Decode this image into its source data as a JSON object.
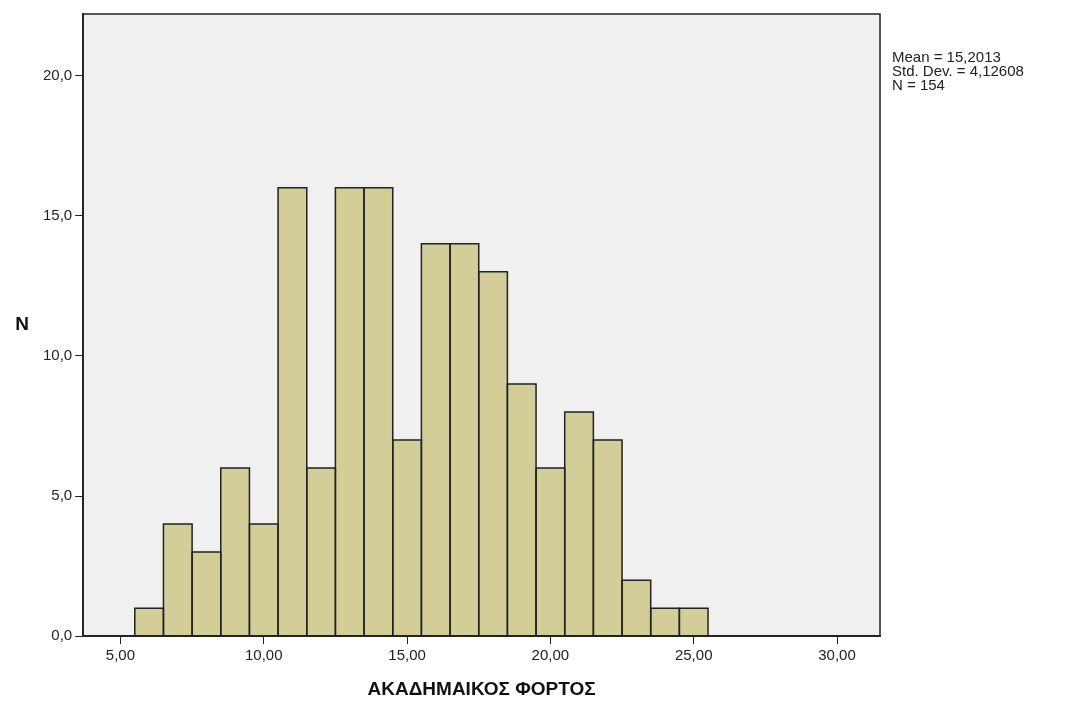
{
  "chart_data": {
    "type": "histogram",
    "xlabel": "ΑΚΑΔΗΜΑΙΚΟΣ ΦΟΡΤΟΣ",
    "ylabel": "N",
    "bins": [
      5.5,
      6.5,
      7.5,
      8.5,
      9.5,
      10.5,
      11.5,
      12.5,
      13.5,
      14.5,
      15.5,
      16.5,
      17.5,
      18.5,
      19.5,
      20.5,
      21.5,
      22.5,
      23.5,
      24.5,
      25.5
    ],
    "values": [
      1,
      4,
      3,
      6,
      4,
      16,
      6,
      16,
      16,
      7,
      14,
      14,
      13,
      9,
      6,
      8,
      7,
      2,
      1,
      1
    ],
    "color": "#d3ce98",
    "xlim": [
      3.7,
      31.5
    ],
    "xticks": [
      {
        "value": 5,
        "label": "5,00"
      },
      {
        "value": 10,
        "label": "10,00"
      },
      {
        "value": 15,
        "label": "15,00"
      },
      {
        "value": 20,
        "label": "20,00"
      },
      {
        "value": 25,
        "label": "25,00"
      },
      {
        "value": 30,
        "label": "30,00"
      }
    ],
    "ylim": [
      0,
      22.2
    ],
    "yticks": [
      {
        "value": 0,
        "label": "0,0"
      },
      {
        "value": 5,
        "label": "5,0"
      },
      {
        "value": 10,
        "label": "10,0"
      },
      {
        "value": 15,
        "label": "15,0"
      },
      {
        "value": 20,
        "label": "20,0"
      }
    ],
    "annotations": [
      "Mean = 15,2013",
      "Std. Dev. = 4,12608",
      "N = 154"
    ],
    "grid": false,
    "legend": false
  }
}
